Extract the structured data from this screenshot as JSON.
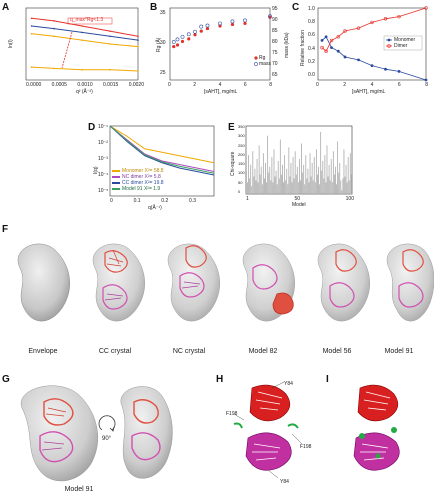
{
  "panels": {
    "A": {
      "letter": "A",
      "ylabel": "ln(I)",
      "xlabel": "q² (Å⁻²)",
      "xticks": [
        "0.0000",
        "0.0005",
        "0.0010",
        "0.0015",
        "0.0020"
      ],
      "annotation": "q_max*Rg<1.3"
    },
    "B": {
      "letter": "B",
      "ylabel_left": "Rg (Å)",
      "ylabel_right": "mass (kDa)",
      "xlabel": "[sAHT], mg/mL",
      "yticks_left": [
        "25",
        "30",
        "35"
      ],
      "yticks_right": [
        "65",
        "70",
        "75",
        "80",
        "85",
        "90",
        "95"
      ],
      "xticks": [
        "0",
        "2",
        "4",
        "6",
        "8"
      ],
      "legend": [
        "Rg",
        "mass"
      ]
    },
    "C": {
      "letter": "C",
      "ylabel": "Relative fraction",
      "xlabel": "[sAHT], mg/mL",
      "yticks": [
        "0.0",
        "0.2",
        "0.4",
        "0.6",
        "0.8",
        "1.0"
      ],
      "xticks": [
        "0",
        "2",
        "4",
        "6",
        "8"
      ],
      "legend": [
        "Monomer",
        "Dimer"
      ]
    },
    "D": {
      "letter": "D",
      "ylabel": "I(q)",
      "xlabel": "q(Å⁻¹)",
      "yticks": [
        "10⁻¹",
        "10⁻²",
        "10⁻³",
        "10⁻⁴",
        "10⁻⁵"
      ],
      "xticks": [
        "0",
        "0.1",
        "0.2",
        "0.3"
      ],
      "legend": [
        "Monomer  Χ²= 58.8",
        "NC dimer  Χ²= 5.8",
        "CC dimer  Χ²= 19.8",
        "Model 91  Χ²= 1.9"
      ]
    },
    "E": {
      "letter": "E",
      "ylabel": "Chi-square",
      "xlabel": "Model",
      "yticks": [
        "350",
        "300",
        "250",
        "200",
        "150",
        "100",
        "50",
        "0"
      ],
      "xticks": [
        "1",
        "50",
        "100"
      ]
    },
    "F": {
      "letter": "F",
      "captions": [
        "Envelope",
        "CC crystal",
        "NC crystal",
        "Model 82",
        "Model 56",
        "Model 91"
      ]
    },
    "G": {
      "letter": "G",
      "caption": "Model 91",
      "rotation": "90°"
    },
    "H": {
      "letter": "H",
      "labels": [
        "Y84",
        "F198",
        "F198",
        "Y84"
      ]
    },
    "I": {
      "letter": "I"
    }
  },
  "chart_data": [
    {
      "type": "scatter",
      "title": "",
      "xlabel": "q² (Å⁻²)",
      "ylabel": "ln(I)",
      "xlim": [
        0,
        0.002
      ],
      "series": [
        {
          "values": [
            [
              0.0001,
              1.0
            ],
            [
              0.0005,
              0.9
            ],
            [
              0.001,
              0.7
            ],
            [
              0.0015,
              0.5
            ],
            [
              0.002,
              0.3
            ]
          ]
        },
        {
          "values": [
            [
              0.0001,
              0.7
            ],
            [
              0.0005,
              0.6
            ],
            [
              0.001,
              0.45
            ],
            [
              0.0015,
              0.3
            ],
            [
              0.002,
              0.15
            ]
          ]
        },
        {
          "values": [
            [
              0.0001,
              0.4
            ],
            [
              0.0005,
              0.3
            ],
            [
              0.001,
              0.15
            ],
            [
              0.0015,
              0.0
            ],
            [
              0.002,
              -0.1
            ]
          ]
        },
        {
          "values": [
            [
              0.0001,
              -0.9
            ],
            [
              0.0005,
              -0.95
            ],
            [
              0.001,
              -1.0
            ],
            [
              0.0015,
              -1.0
            ],
            [
              0.002,
              -1.05
            ]
          ]
        }
      ]
    },
    {
      "type": "scatter",
      "xlabel": "[sAHT], mg/mL",
      "ylabel": "Rg (Å)",
      "ylim": [
        24,
        38
      ],
      "xlim": [
        0,
        8
      ],
      "series": [
        {
          "name": "Rg",
          "values": [
            [
              0.3,
              30.5
            ],
            [
              0.6,
              30.8
            ],
            [
              1.0,
              31.5
            ],
            [
              1.5,
              32.0
            ],
            [
              2.0,
              32.8
            ],
            [
              2.5,
              33.5
            ],
            [
              3.0,
              34.0
            ],
            [
              4.0,
              34.5
            ],
            [
              5.0,
              34.8
            ],
            [
              6.0,
              35.0
            ],
            [
              8.0,
              36.2
            ]
          ]
        },
        {
          "name": "mass",
          "values": [
            [
              0.3,
              31.0
            ],
            [
              0.6,
              31.5
            ],
            [
              1.0,
              32.0
            ],
            [
              1.5,
              32.5
            ],
            [
              2.0,
              33.0
            ],
            [
              2.5,
              34.0
            ],
            [
              3.0,
              34.2
            ],
            [
              4.0,
              34.6
            ],
            [
              5.0,
              35.0
            ],
            [
              6.0,
              35.2
            ],
            [
              8.0,
              36.0
            ]
          ]
        }
      ]
    },
    {
      "type": "scatter",
      "xlabel": "[sAHT], mg/mL",
      "ylabel": "Relative fraction",
      "ylim": [
        0,
        1
      ],
      "xlim": [
        0,
        8
      ],
      "series": [
        {
          "name": "Monomer",
          "values": [
            [
              0.3,
              0.55
            ],
            [
              0.6,
              0.6
            ],
            [
              1.0,
              0.45
            ],
            [
              1.5,
              0.4
            ],
            [
              2.0,
              0.32
            ],
            [
              3.0,
              0.28
            ],
            [
              4.0,
              0.2
            ],
            [
              5.0,
              0.15
            ],
            [
              6.0,
              0.12
            ],
            [
              8.0,
              0.0
            ]
          ]
        },
        {
          "name": "Dimer",
          "values": [
            [
              0.3,
              0.45
            ],
            [
              0.6,
              0.4
            ],
            [
              1.0,
              0.55
            ],
            [
              1.5,
              0.6
            ],
            [
              2.0,
              0.68
            ],
            [
              3.0,
              0.72
            ],
            [
              4.0,
              0.8
            ],
            [
              5.0,
              0.85
            ],
            [
              6.0,
              0.88
            ],
            [
              8.0,
              1.0
            ]
          ]
        }
      ]
    },
    {
      "type": "line",
      "xlabel": "q(Å⁻¹)",
      "ylabel": "I(q)",
      "xlim": [
        0,
        0.3
      ],
      "series": [
        {
          "name": "Monomer  Χ²= 58.8",
          "values": [
            [
              0.0,
              -1.0
            ],
            [
              0.05,
              -1.6
            ],
            [
              0.1,
              -2.3
            ],
            [
              0.15,
              -2.5
            ],
            [
              0.2,
              -2.7
            ],
            [
              0.25,
              -2.9
            ],
            [
              0.3,
              -3.1
            ]
          ]
        },
        {
          "name": "NC dimer  Χ²= 5.8",
          "values": [
            [
              0.0,
              -1.0
            ],
            [
              0.05,
              -1.8
            ],
            [
              0.1,
              -2.6
            ],
            [
              0.15,
              -3.0
            ],
            [
              0.2,
              -3.2
            ],
            [
              0.25,
              -3.4
            ],
            [
              0.3,
              -3.6
            ]
          ]
        },
        {
          "name": "CC dimer  Χ²= 19.8",
          "values": [
            [
              0.0,
              -1.0
            ],
            [
              0.05,
              -1.9
            ],
            [
              0.1,
              -2.7
            ],
            [
              0.15,
              -3.1
            ],
            [
              0.2,
              -3.4
            ],
            [
              0.25,
              -3.6
            ],
            [
              0.3,
              -3.8
            ]
          ]
        },
        {
          "name": "Model 91  Χ²= 1.9",
          "values": [
            [
              0.0,
              -1.0
            ],
            [
              0.05,
              -1.85
            ],
            [
              0.1,
              -2.65
            ],
            [
              0.15,
              -3.05
            ],
            [
              0.2,
              -3.3
            ],
            [
              0.25,
              -3.5
            ],
            [
              0.3,
              -3.7
            ]
          ]
        }
      ]
    },
    {
      "type": "bar",
      "xlabel": "Model",
      "ylabel": "Chi-square",
      "ylim": [
        0,
        350
      ],
      "values": [
        120,
        60,
        200,
        80,
        150,
        40,
        220,
        90,
        130,
        70,
        180,
        60,
        250,
        100,
        140,
        50,
        210,
        80,
        160,
        60,
        300,
        110,
        140,
        70,
        190,
        60,
        230,
        90,
        120,
        50,
        170,
        80,
        280,
        100,
        150,
        60,
        200,
        70,
        130,
        50,
        240,
        90,
        160,
        60,
        190,
        80,
        220,
        100,
        140,
        60,
        180,
        70,
        260,
        110,
        150,
        50,
        200,
        80,
        130,
        60,
        210,
        90,
        160,
        70,
        190,
        60,
        230,
        100,
        140,
        50,
        320,
        120,
        170,
        80,
        200,
        60,
        250,
        90,
        150,
        70,
        180,
        60,
        220,
        100,
        140,
        50,
        270,
        110,
        160,
        70,
        20,
        80,
        230,
        90,
        150,
        60,
        190,
        70,
        210,
        100
      ]
    }
  ]
}
